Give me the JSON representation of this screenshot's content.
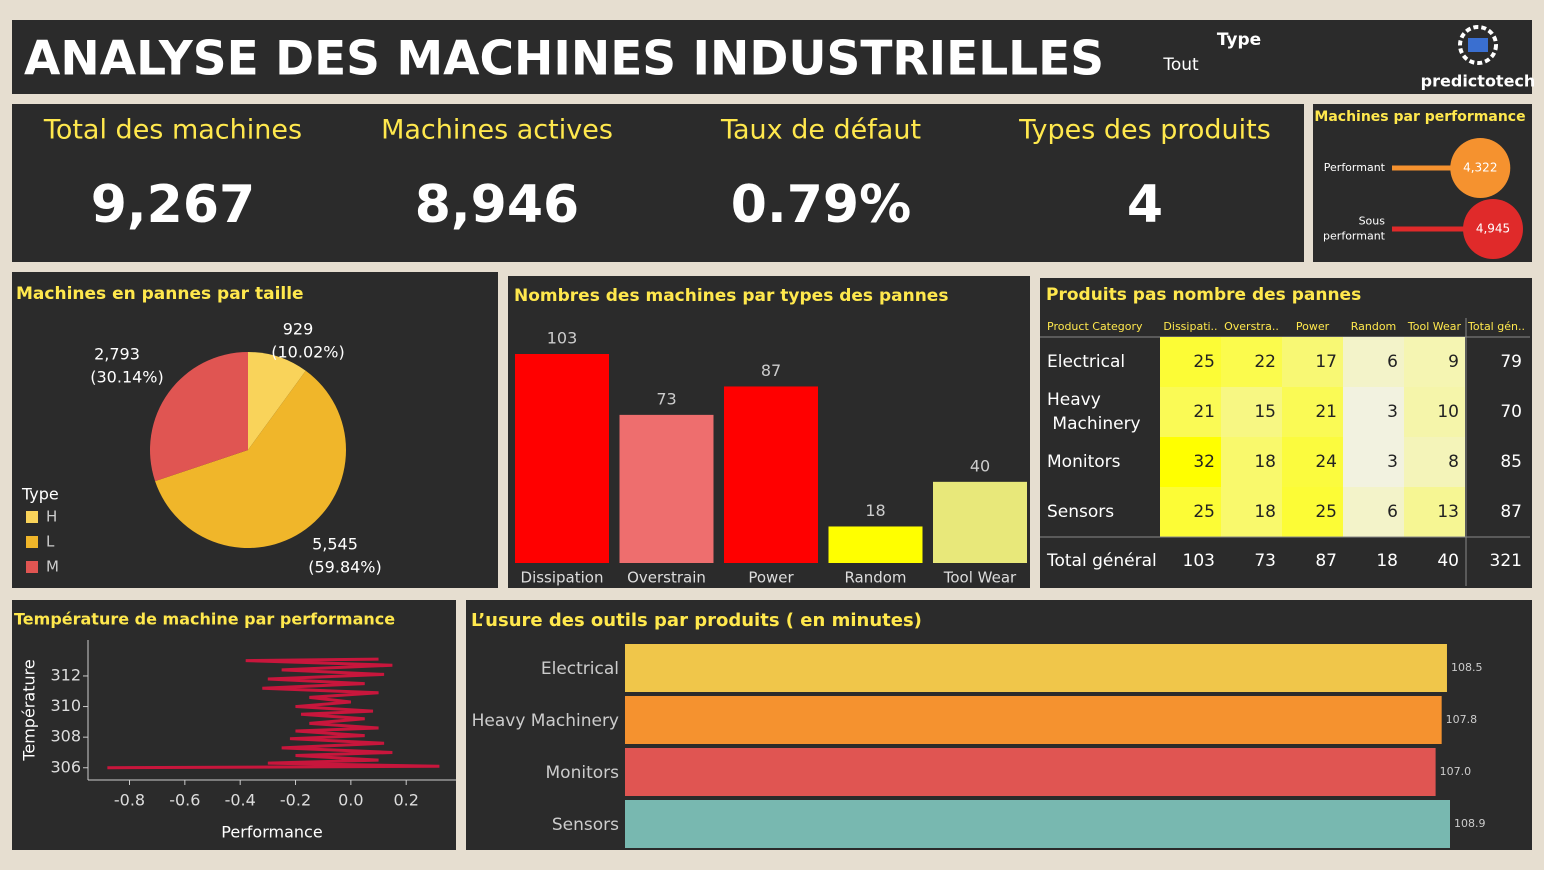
{
  "header": {
    "title": "ANALYSE DES MACHINES INDUSTRIELLES",
    "filter_label": "Type",
    "filter_value": "Tout",
    "logo": "predictotech"
  },
  "kpis": [
    {
      "label": "Total des machines",
      "value": "9,267"
    },
    {
      "label": "Machines actives",
      "value": "8,946"
    },
    {
      "label": "Taux de défaut",
      "value": "0.79%"
    },
    {
      "label": "Types des produits",
      "value": "4"
    }
  ],
  "chart_data": [
    {
      "type": "lollipop",
      "title": "Machines par performance",
      "categories": [
        "Performant",
        "Sous performant"
      ],
      "values": [
        4322,
        4945
      ],
      "value_labels": [
        "4,322",
        "4,945"
      ],
      "colors": [
        "#f5922f",
        "#e02a2a"
      ]
    },
    {
      "type": "pie",
      "title": "Machines en pannes par taille",
      "legend_title": "Type",
      "categories": [
        "H",
        "L",
        "M"
      ],
      "values": [
        929,
        5545,
        2793
      ],
      "value_labels": [
        "929",
        "5,545",
        "2,793"
      ],
      "percentages": [
        10.02,
        59.84,
        30.14
      ],
      "percentage_labels": [
        "(10.02%)",
        "(59.84%)",
        "(30.14%)"
      ],
      "colors": [
        "#f9d35a",
        "#f0b62a",
        "#e05552"
      ]
    },
    {
      "type": "bar",
      "title": "Nombres des machines par types des pannes",
      "categories": [
        "Dissipation",
        "Overstrain",
        "Power",
        "Random",
        "Tool Wear"
      ],
      "values": [
        103,
        73,
        87,
        18,
        40
      ],
      "colors": [
        "#ff0000",
        "#ee6e6e",
        "#ff0000",
        "#ffff00",
        "#e8e87a"
      ]
    },
    {
      "type": "line",
      "title": "Température de machine par performance",
      "x_label": "Performance",
      "y_label": "Température",
      "color": "#c8163c",
      "x": [
        -0.88,
        0.32,
        -0.3,
        0.1,
        -0.2,
        0.15,
        -0.25,
        0.12,
        -0.22,
        0.05,
        -0.2,
        0.1,
        -0.15,
        0.05,
        -0.18,
        0.08,
        -0.2,
        0.0,
        -0.15,
        0.1,
        -0.32,
        0.05,
        -0.3,
        0.12,
        -0.25,
        0.15,
        -0.38,
        0.1
      ],
      "values": [
        306.0,
        306.1,
        306.3,
        306.5,
        306.8,
        307.0,
        307.3,
        307.6,
        307.9,
        308.1,
        308.4,
        308.6,
        308.9,
        309.2,
        309.5,
        309.7,
        310.0,
        310.3,
        310.6,
        310.9,
        311.2,
        311.5,
        311.8,
        312.1,
        312.4,
        312.7,
        313.0,
        313.1
      ],
      "xlim": [
        -0.95,
        0.38
      ],
      "xticks": [
        -0.8,
        -0.6,
        -0.4,
        -0.2,
        {
          "value": 0,
          "label": "0.0"
        },
        0.2
      ],
      "ylim": [
        305.2,
        314.35
      ],
      "yticks": [
        306,
        308,
        310,
        312
      ]
    },
    {
      "type": "hbar",
      "title": "L’usure des outils par produits ( en minutes)",
      "categories": [
        "Electrical",
        "Heavy Machinery",
        "Monitors",
        "Sensors"
      ],
      "values": [
        108.5,
        107.8,
        107.0,
        108.9
      ],
      "value_labels": [
        "108.5",
        "107.8",
        "107.0",
        "108.9"
      ],
      "colors": [
        "#f0c64a",
        "#f5922f",
        "#e05552",
        "#78b8b0"
      ]
    }
  ],
  "table": {
    "title": "Produits pas nombre des pannes",
    "columns": [
      "Product Category",
      "Dissipati..",
      "Overstra..",
      "Power",
      "Random",
      "Tool Wear",
      "Total gén.."
    ],
    "rows": [
      [
        "Electrical",
        25,
        22,
        17,
        6,
        9,
        79
      ],
      [
        "Heavy Machinery",
        21,
        15,
        21,
        3,
        10,
        70
      ],
      [
        "Monitors",
        32,
        18,
        24,
        3,
        8,
        85
      ],
      [
        "Sensors",
        25,
        18,
        25,
        6,
        13,
        87
      ]
    ],
    "total": [
      "Total général",
      103,
      73,
      87,
      18,
      40,
      321
    ]
  }
}
